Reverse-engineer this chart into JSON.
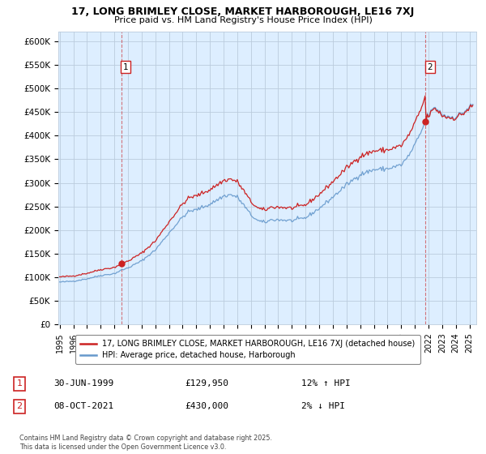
{
  "title": "17, LONG BRIMLEY CLOSE, MARKET HARBOROUGH, LE16 7XJ",
  "subtitle": "Price paid vs. HM Land Registry's House Price Index (HPI)",
  "ylim": [
    0,
    620000
  ],
  "yticks": [
    0,
    50000,
    100000,
    150000,
    200000,
    250000,
    300000,
    350000,
    400000,
    450000,
    500000,
    550000,
    600000
  ],
  "ytick_labels": [
    "£0",
    "£50K",
    "£100K",
    "£150K",
    "£200K",
    "£250K",
    "£300K",
    "£350K",
    "£400K",
    "£450K",
    "£500K",
    "£550K",
    "£600K"
  ],
  "background_color": "#ffffff",
  "chart_bg_color": "#ddeeff",
  "grid_color": "#bbccdd",
  "legend_label_red": "17, LONG BRIMLEY CLOSE, MARKET HARBOROUGH, LE16 7XJ (detached house)",
  "legend_label_blue": "HPI: Average price, detached house, Harborough",
  "footer": "Contains HM Land Registry data © Crown copyright and database right 2025.\nThis data is licensed under the Open Government Licence v3.0.",
  "red_color": "#cc2222",
  "blue_color": "#6699cc",
  "sale1_x": 1999.5,
  "sale1_y": 129950,
  "sale2_x": 2021.75,
  "sale2_y": 430000,
  "ann1_date": "30-JUN-1999",
  "ann1_price": "£129,950",
  "ann1_hpi": "12% ↑ HPI",
  "ann2_date": "08-OCT-2021",
  "ann2_price": "£430,000",
  "ann2_hpi": "2% ↓ HPI",
  "xlim_min": 1994.9,
  "xlim_max": 2025.5,
  "xticks": [
    1995,
    1996,
    1997,
    1998,
    1999,
    2000,
    2001,
    2002,
    2003,
    2004,
    2005,
    2006,
    2007,
    2008,
    2009,
    2010,
    2011,
    2012,
    2013,
    2014,
    2015,
    2016,
    2017,
    2018,
    2019,
    2020,
    2021,
    2022,
    2023,
    2024,
    2025
  ]
}
